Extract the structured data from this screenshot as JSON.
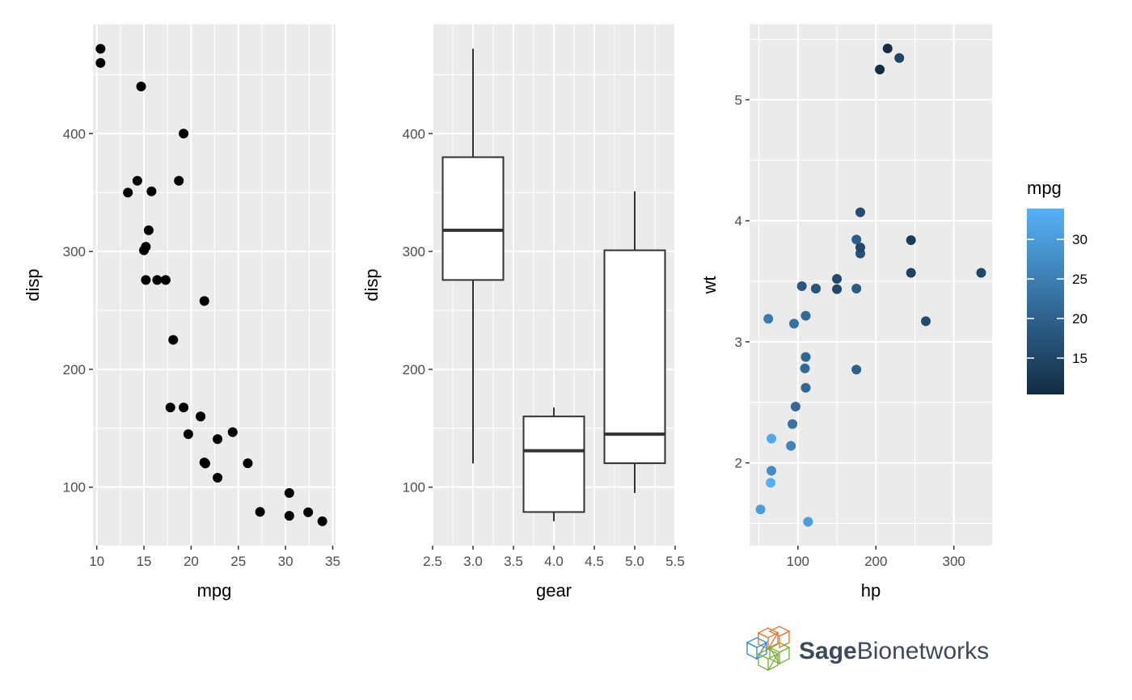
{
  "chart_data": [
    {
      "type": "scatter",
      "xlabel": "mpg",
      "ylabel": "disp",
      "xlim": [
        9.6,
        35.3
      ],
      "ylim": [
        50.4,
        492.8
      ],
      "xticks": [
        10,
        15,
        20,
        25,
        30,
        35
      ],
      "yticks": [
        100,
        200,
        300,
        400
      ],
      "point_color": "#000000",
      "points": [
        {
          "x": 21.0,
          "y": 160
        },
        {
          "x": 21.0,
          "y": 160
        },
        {
          "x": 22.8,
          "y": 108
        },
        {
          "x": 21.4,
          "y": 258
        },
        {
          "x": 18.7,
          "y": 360
        },
        {
          "x": 18.1,
          "y": 225
        },
        {
          "x": 14.3,
          "y": 360
        },
        {
          "x": 24.4,
          "y": 146.7
        },
        {
          "x": 22.8,
          "y": 140.8
        },
        {
          "x": 19.2,
          "y": 167.6
        },
        {
          "x": 17.8,
          "y": 167.6
        },
        {
          "x": 16.4,
          "y": 275.8
        },
        {
          "x": 17.3,
          "y": 275.8
        },
        {
          "x": 15.2,
          "y": 275.8
        },
        {
          "x": 10.4,
          "y": 472
        },
        {
          "x": 10.4,
          "y": 460
        },
        {
          "x": 14.7,
          "y": 440
        },
        {
          "x": 32.4,
          "y": 78.7
        },
        {
          "x": 30.4,
          "y": 75.7
        },
        {
          "x": 33.9,
          "y": 71.1
        },
        {
          "x": 21.5,
          "y": 120.1
        },
        {
          "x": 15.5,
          "y": 318
        },
        {
          "x": 15.2,
          "y": 304
        },
        {
          "x": 13.3,
          "y": 350
        },
        {
          "x": 19.2,
          "y": 400
        },
        {
          "x": 27.3,
          "y": 79
        },
        {
          "x": 26.0,
          "y": 120.3
        },
        {
          "x": 30.4,
          "y": 95.1
        },
        {
          "x": 15.8,
          "y": 351
        },
        {
          "x": 19.7,
          "y": 145
        },
        {
          "x": 15.0,
          "y": 301
        },
        {
          "x": 21.4,
          "y": 121
        }
      ]
    },
    {
      "type": "box",
      "xlabel": "gear",
      "ylabel": "disp",
      "xlim": [
        2.5,
        5.5
      ],
      "ylim": [
        50.4,
        492.8
      ],
      "xticks": [
        "2.5",
        "3.0",
        "3.5",
        "4.0",
        "4.5",
        "5.0",
        "5.5"
      ],
      "yticks": [
        100,
        200,
        300,
        400
      ],
      "boxes": [
        {
          "x": 3,
          "min": 120.1,
          "q1": 275.8,
          "median": 318,
          "q3": 380,
          "max": 472
        },
        {
          "x": 4,
          "min": 71.1,
          "q1": 78.9,
          "median": 130.9,
          "q3": 160,
          "max": 167.6
        },
        {
          "x": 5,
          "min": 95.1,
          "q1": 120.3,
          "median": 145,
          "q3": 301,
          "max": 351
        }
      ]
    },
    {
      "type": "scatter",
      "xlabel": "hp",
      "ylabel": "wt",
      "xlim": [
        37.95,
        349.05
      ],
      "ylim": [
        1.316,
        5.624
      ],
      "xticks": [
        100,
        200,
        300
      ],
      "yticks": [
        2,
        3,
        4,
        5
      ],
      "color_variable": "mpg",
      "color_low": "#132b43",
      "color_high": "#56b1f7",
      "color_limits": [
        10.4,
        33.9
      ],
      "points": [
        {
          "x": 110,
          "y": 2.62,
          "mpg": 21.0
        },
        {
          "x": 110,
          "y": 2.875,
          "mpg": 21.0
        },
        {
          "x": 93,
          "y": 2.32,
          "mpg": 22.8
        },
        {
          "x": 110,
          "y": 3.215,
          "mpg": 21.4
        },
        {
          "x": 175,
          "y": 3.44,
          "mpg": 18.7
        },
        {
          "x": 105,
          "y": 3.46,
          "mpg": 18.1
        },
        {
          "x": 245,
          "y": 3.57,
          "mpg": 14.3
        },
        {
          "x": 62,
          "y": 3.19,
          "mpg": 24.4
        },
        {
          "x": 95,
          "y": 3.15,
          "mpg": 22.8
        },
        {
          "x": 123,
          "y": 3.44,
          "mpg": 19.2
        },
        {
          "x": 123,
          "y": 3.44,
          "mpg": 17.8
        },
        {
          "x": 180,
          "y": 4.07,
          "mpg": 16.4
        },
        {
          "x": 180,
          "y": 3.73,
          "mpg": 17.3
        },
        {
          "x": 180,
          "y": 3.78,
          "mpg": 15.2
        },
        {
          "x": 205,
          "y": 5.25,
          "mpg": 10.4
        },
        {
          "x": 215,
          "y": 5.424,
          "mpg": 10.4
        },
        {
          "x": 230,
          "y": 5.345,
          "mpg": 14.7
        },
        {
          "x": 66,
          "y": 2.2,
          "mpg": 32.4
        },
        {
          "x": 52,
          "y": 1.615,
          "mpg": 30.4
        },
        {
          "x": 65,
          "y": 1.835,
          "mpg": 33.9
        },
        {
          "x": 97,
          "y": 2.465,
          "mpg": 21.5
        },
        {
          "x": 150,
          "y": 3.52,
          "mpg": 15.5
        },
        {
          "x": 150,
          "y": 3.435,
          "mpg": 15.2
        },
        {
          "x": 245,
          "y": 3.84,
          "mpg": 13.3
        },
        {
          "x": 175,
          "y": 3.845,
          "mpg": 19.2
        },
        {
          "x": 66,
          "y": 1.935,
          "mpg": 27.3
        },
        {
          "x": 91,
          "y": 2.14,
          "mpg": 26.0
        },
        {
          "x": 113,
          "y": 1.513,
          "mpg": 30.4
        },
        {
          "x": 264,
          "y": 3.17,
          "mpg": 15.8
        },
        {
          "x": 175,
          "y": 2.77,
          "mpg": 19.7
        },
        {
          "x": 335,
          "y": 3.57,
          "mpg": 15.0
        },
        {
          "x": 109,
          "y": 2.78,
          "mpg": 21.4
        }
      ]
    }
  ],
  "legend": {
    "title": "mpg",
    "breaks": [
      15,
      20,
      25,
      30
    ],
    "limits": [
      10.4,
      33.9
    ]
  },
  "logo": {
    "name": "sage-bionetworks-logo",
    "text_bold": "Sage",
    "text_regular": "Bionetworks"
  }
}
